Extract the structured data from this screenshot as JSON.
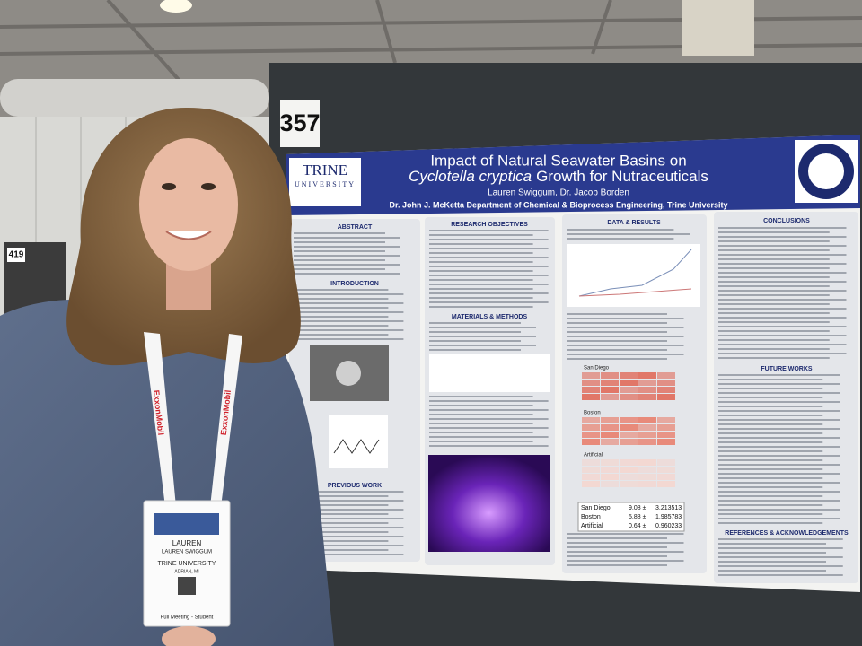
{
  "scene": {
    "booth_number": "357",
    "neighbor_booth": "419",
    "poster": {
      "logo": {
        "name": "TRINE",
        "subname": "UNIVERSITY"
      },
      "title_line1": "Impact of Natural Seawater Basins on",
      "title_line2_italic": "Cyclotella cryptica",
      "title_line2_rest": "Growth for Nutraceuticals",
      "authors": "Lauren Swiggum, Dr. Jacob Borden",
      "department": "Dr. John J. McKetta Department of Chemical & Bioprocess Engineering, Trine University",
      "headings": {
        "abstract": "ABSTRACT",
        "introduction": "INTRODUCTION",
        "previous_work": "PREVIOUS WORK",
        "research_objectives": "RESEARCH OBJECTIVES",
        "materials_methods": "MATERIALS & METHODS",
        "data_results": "DATA & RESULTS",
        "conclusions": "CONCLUSIONS",
        "future_works": "FUTURE WORKS",
        "references": "REFERENCES & ACKNOWLEDGEMENTS"
      },
      "heatmap_labels": [
        "San Diego",
        "Boston",
        "Artificial"
      ],
      "results_table": {
        "rows": [
          [
            "San Diego",
            "9.08 ±",
            "3.213513"
          ],
          [
            "Boston",
            "5.88 ±",
            "1.985783"
          ],
          [
            "Artificial",
            "0.64 ±",
            "0.960233"
          ]
        ]
      }
    },
    "lanyard": [
      "ExxonMobil",
      "ExxonMobil"
    ],
    "badge": {
      "first_name": "LAUREN",
      "full_name": "LAUREN SWIGGUM",
      "affiliation": "TRINE UNIVERSITY",
      "location": "ADRIAN, MI",
      "registration": "Full Meeting - Student"
    }
  }
}
